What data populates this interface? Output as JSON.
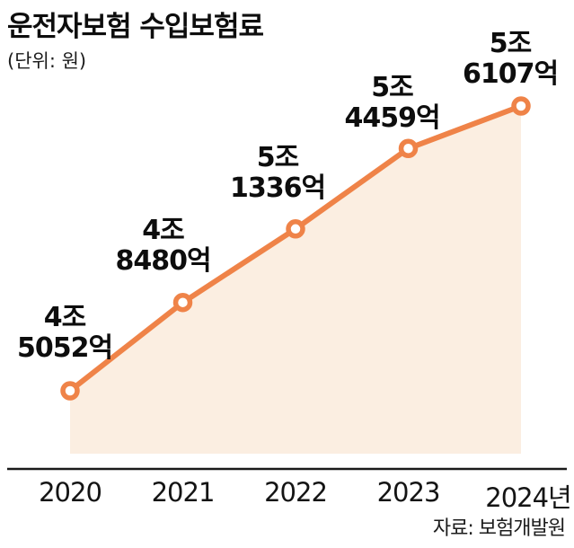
{
  "chart_data": {
    "type": "area",
    "title": "운전자보험 수입보험료",
    "unit_label": "(단위: 원)",
    "categories": [
      "2020",
      "2021",
      "2022",
      "2023",
      "2024년"
    ],
    "values": [
      45052,
      48480,
      51336,
      54459,
      56107
    ],
    "value_unit": "억 원",
    "point_labels": [
      [
        "4조",
        "5052억"
      ],
      [
        "4조",
        "8480억"
      ],
      [
        "5조",
        "1336억"
      ],
      [
        "5조",
        "4459억"
      ],
      [
        "5조",
        "6107억"
      ]
    ],
    "source": "자료: 보험개발원",
    "line_color": "#EF8348",
    "area_color": "#FBEEE1",
    "axis_color": "#1a1a1a",
    "legend": "none",
    "grid": "off"
  }
}
